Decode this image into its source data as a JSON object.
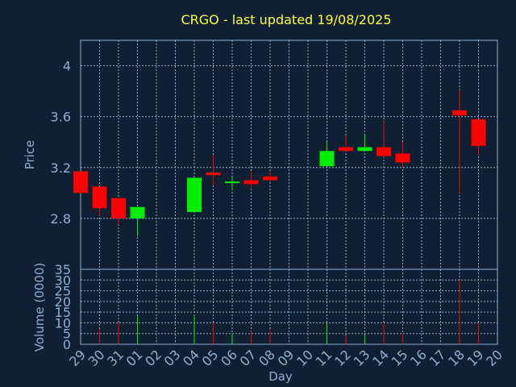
{
  "chart_data": [
    {
      "type": "candlestick",
      "title": "CRGO - last updated 19/08/2025",
      "ylabel": "Price",
      "ylim": [
        2.4,
        4.2
      ],
      "yticks": [
        "2.8",
        "3.2",
        "3.6",
        "4"
      ],
      "grid": true,
      "up_color": "#00ee00",
      "down_color": "#ff0000",
      "candles": [
        {
          "x": "29",
          "open": 3.17,
          "high": 3.17,
          "low": 3.0,
          "close": 3.0
        },
        {
          "x": "30",
          "open": 3.05,
          "high": 3.05,
          "low": 2.82,
          "close": 2.88
        },
        {
          "x": "31",
          "open": 2.96,
          "high": 2.96,
          "low": 2.75,
          "close": 2.8
        },
        {
          "x": "01",
          "open": 2.8,
          "high": 2.89,
          "low": 2.66,
          "close": 2.89
        },
        {
          "x": "04",
          "open": 2.85,
          "high": 3.12,
          "low": 2.85,
          "close": 3.12
        },
        {
          "x": "05",
          "open": 3.16,
          "high": 3.3,
          "low": 3.06,
          "close": 3.14
        },
        {
          "x": "06",
          "open": 3.08,
          "high": 3.13,
          "low": 3.02,
          "close": 3.09
        },
        {
          "x": "07",
          "open": 3.1,
          "high": 3.17,
          "low": 3.04,
          "close": 3.07
        },
        {
          "x": "08",
          "open": 3.13,
          "high": 3.17,
          "low": 3.09,
          "close": 3.1
        },
        {
          "x": "11",
          "open": 3.21,
          "high": 3.4,
          "low": 3.21,
          "close": 3.33
        },
        {
          "x": "12",
          "open": 3.36,
          "high": 3.45,
          "low": 3.33,
          "close": 3.33
        },
        {
          "x": "13",
          "open": 3.33,
          "high": 3.46,
          "low": 3.33,
          "close": 3.36
        },
        {
          "x": "14",
          "open": 3.36,
          "high": 3.56,
          "low": 3.28,
          "close": 3.29
        },
        {
          "x": "15",
          "open": 3.31,
          "high": 3.4,
          "low": 3.2,
          "close": 3.24
        },
        {
          "x": "18",
          "open": 3.65,
          "high": 3.81,
          "low": 3.0,
          "close": 3.61
        },
        {
          "x": "19",
          "open": 3.58,
          "high": 3.58,
          "low": 3.3,
          "close": 3.37
        }
      ]
    },
    {
      "type": "bar",
      "xlabel": "Day",
      "ylabel": "Volume (0000)",
      "ylim": [
        0,
        35
      ],
      "yticks": [
        "0",
        "5",
        "10",
        "15",
        "20",
        "25",
        "30",
        "35"
      ],
      "grid": true,
      "categories": [
        "29",
        "30",
        "31",
        "01",
        "02",
        "03",
        "04",
        "05",
        "06",
        "07",
        "08",
        "09",
        "10",
        "11",
        "12",
        "13",
        "14",
        "15",
        "16",
        "17",
        "18",
        "19",
        "20"
      ],
      "values": [
        0,
        7,
        10,
        13,
        0,
        0,
        13,
        10,
        5,
        6,
        7,
        0,
        0,
        10,
        4,
        4,
        10,
        5,
        0,
        0,
        30,
        10,
        0
      ],
      "colors": [
        "#ff0000",
        "#ff0000",
        "#ff0000",
        "#00ee00",
        "#ff0000",
        "#ff0000",
        "#00ee00",
        "#ff0000",
        "#00ee00",
        "#ff0000",
        "#ff0000",
        "#ff0000",
        "#ff0000",
        "#00ee00",
        "#ff0000",
        "#00ee00",
        "#ff0000",
        "#ff0000",
        "#ff0000",
        "#ff0000",
        "#ff0000",
        "#ff0000",
        "#ff0000"
      ]
    }
  ]
}
